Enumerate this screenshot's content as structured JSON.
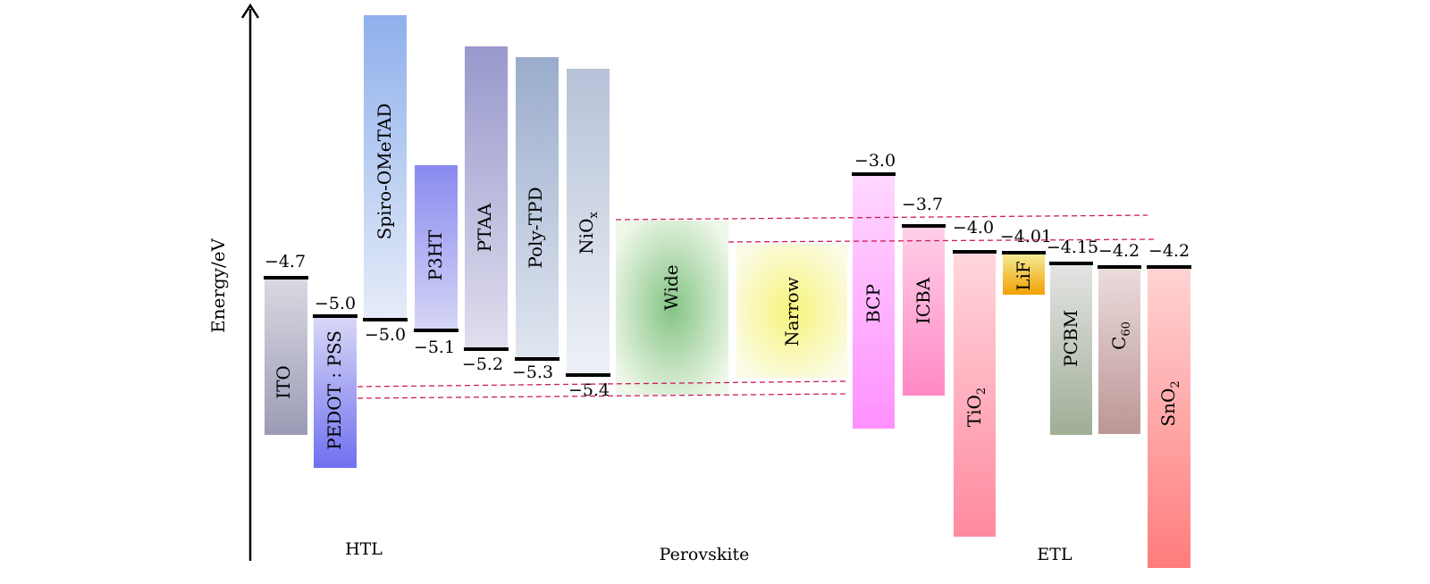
{
  "axis": {
    "label": "Energy/eV"
  },
  "sections": {
    "htl": "HTL",
    "perovskite": "Perovskite",
    "etl": "ETL"
  },
  "materials": [
    {
      "id": "ITO",
      "label": "ITO",
      "level_label": "−4.7",
      "colors": [
        "#d9d9e2",
        "#9b9bb6"
      ]
    },
    {
      "id": "PEDOT",
      "label": "PEDOT : PSS",
      "level_label": "−5.0",
      "colors": [
        "#d8d8f6",
        "#7070f0"
      ]
    },
    {
      "id": "Spiro",
      "label": "Spiro-OMeTAD",
      "level_label": "−5.0",
      "colors": [
        "#8fb0ec",
        "#e6ecf8"
      ]
    },
    {
      "id": "P3HT",
      "label": "P3HT",
      "level_label": "−5.1",
      "colors": [
        "#8a8af0",
        "#d6d6f6"
      ]
    },
    {
      "id": "PTAA",
      "label": "PTAA",
      "level_label": "−5.2",
      "colors": [
        "#9898cc",
        "#e0deee"
      ]
    },
    {
      "id": "PolyTPD",
      "label": "Poly-TPD",
      "level_label": "−5.3",
      "colors": [
        "#9aaccc",
        "#e0e6f0"
      ]
    },
    {
      "id": "NiOx",
      "label": "NiO",
      "label_sub": "x",
      "level_label": "−5.4",
      "colors": [
        "#b6c2d8",
        "#eef1f7"
      ]
    },
    {
      "id": "BCP",
      "label": "BCP",
      "level_label": "−3.0",
      "colors": [
        "#ffd8ff",
        "#ff90ff"
      ]
    },
    {
      "id": "ICBA",
      "label": "ICBA",
      "level_label": "−3.7",
      "colors": [
        "#ffd0e8",
        "#ff88c4"
      ]
    },
    {
      "id": "TiO2",
      "label": "TiO",
      "label_sub": "2",
      "level_label": "−4.0",
      "colors": [
        "#ffd6dc",
        "#ff8aa0"
      ]
    },
    {
      "id": "LiF",
      "label": "LiF",
      "level_label": "−4.01",
      "colors": [
        "#f4ee9a",
        "#f2a000"
      ]
    },
    {
      "id": "PCBM",
      "label": "PCBM",
      "level_label": "−4.15",
      "colors": [
        "#e4e4e4",
        "#9fae96"
      ]
    },
    {
      "id": "C60",
      "label": "C",
      "label_sub": "60",
      "level_label": "−4.2",
      "colors": [
        "#ecdcdc",
        "#bc9696"
      ]
    },
    {
      "id": "SnO2",
      "label": "SnO",
      "label_sub": "2",
      "level_label": "−4.2",
      "colors": [
        "#ffd4d4",
        "#ff7c7c"
      ]
    }
  ],
  "perovskite": [
    {
      "id": "Wide",
      "label": "Wide",
      "colors": [
        "#84c484",
        "#eef7e8"
      ]
    },
    {
      "id": "Narrow",
      "label": "Narrow",
      "colors": [
        "#f6f47a",
        "#fbfbe6"
      ]
    }
  ],
  "colors": {
    "band_line": "#000000",
    "dashed": "#cc1e5a",
    "axis": "#000000"
  }
}
